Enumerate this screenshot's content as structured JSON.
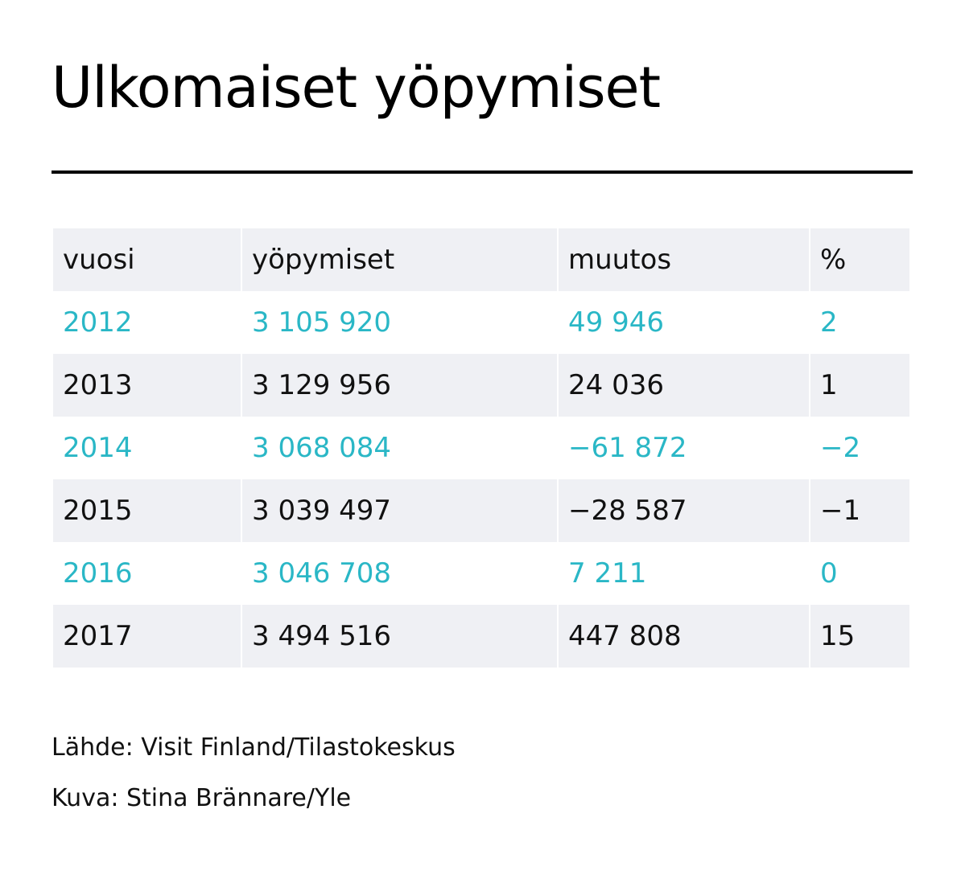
{
  "title": "Ulkomaiset yöpymiset",
  "colors": {
    "highlight": "#2ab7c6",
    "text": "#111111",
    "shade": "#eff0f4"
  },
  "chart_data": {
    "type": "table",
    "title": "Ulkomaiset yöpymiset",
    "columns": [
      "vuosi",
      "yöpymiset",
      "muutos",
      "%"
    ],
    "rows": [
      [
        "2012",
        "3 105 920",
        "49 946",
        "2"
      ],
      [
        "2013",
        "3 129 956",
        "24 036",
        "1"
      ],
      [
        "2014",
        "3 068 084",
        "−61 872",
        "−2"
      ],
      [
        "2015",
        "3 039 497",
        "−28 587",
        "−1"
      ],
      [
        "2016",
        "3 046 708",
        "7 211",
        "0"
      ],
      [
        "2017",
        "3 494 516",
        "447 808",
        "15"
      ]
    ]
  },
  "footer": {
    "source": "Lähde: Visit Finland/Tilastokeskus",
    "credit": "Kuva: Stina Brännare/Yle"
  }
}
